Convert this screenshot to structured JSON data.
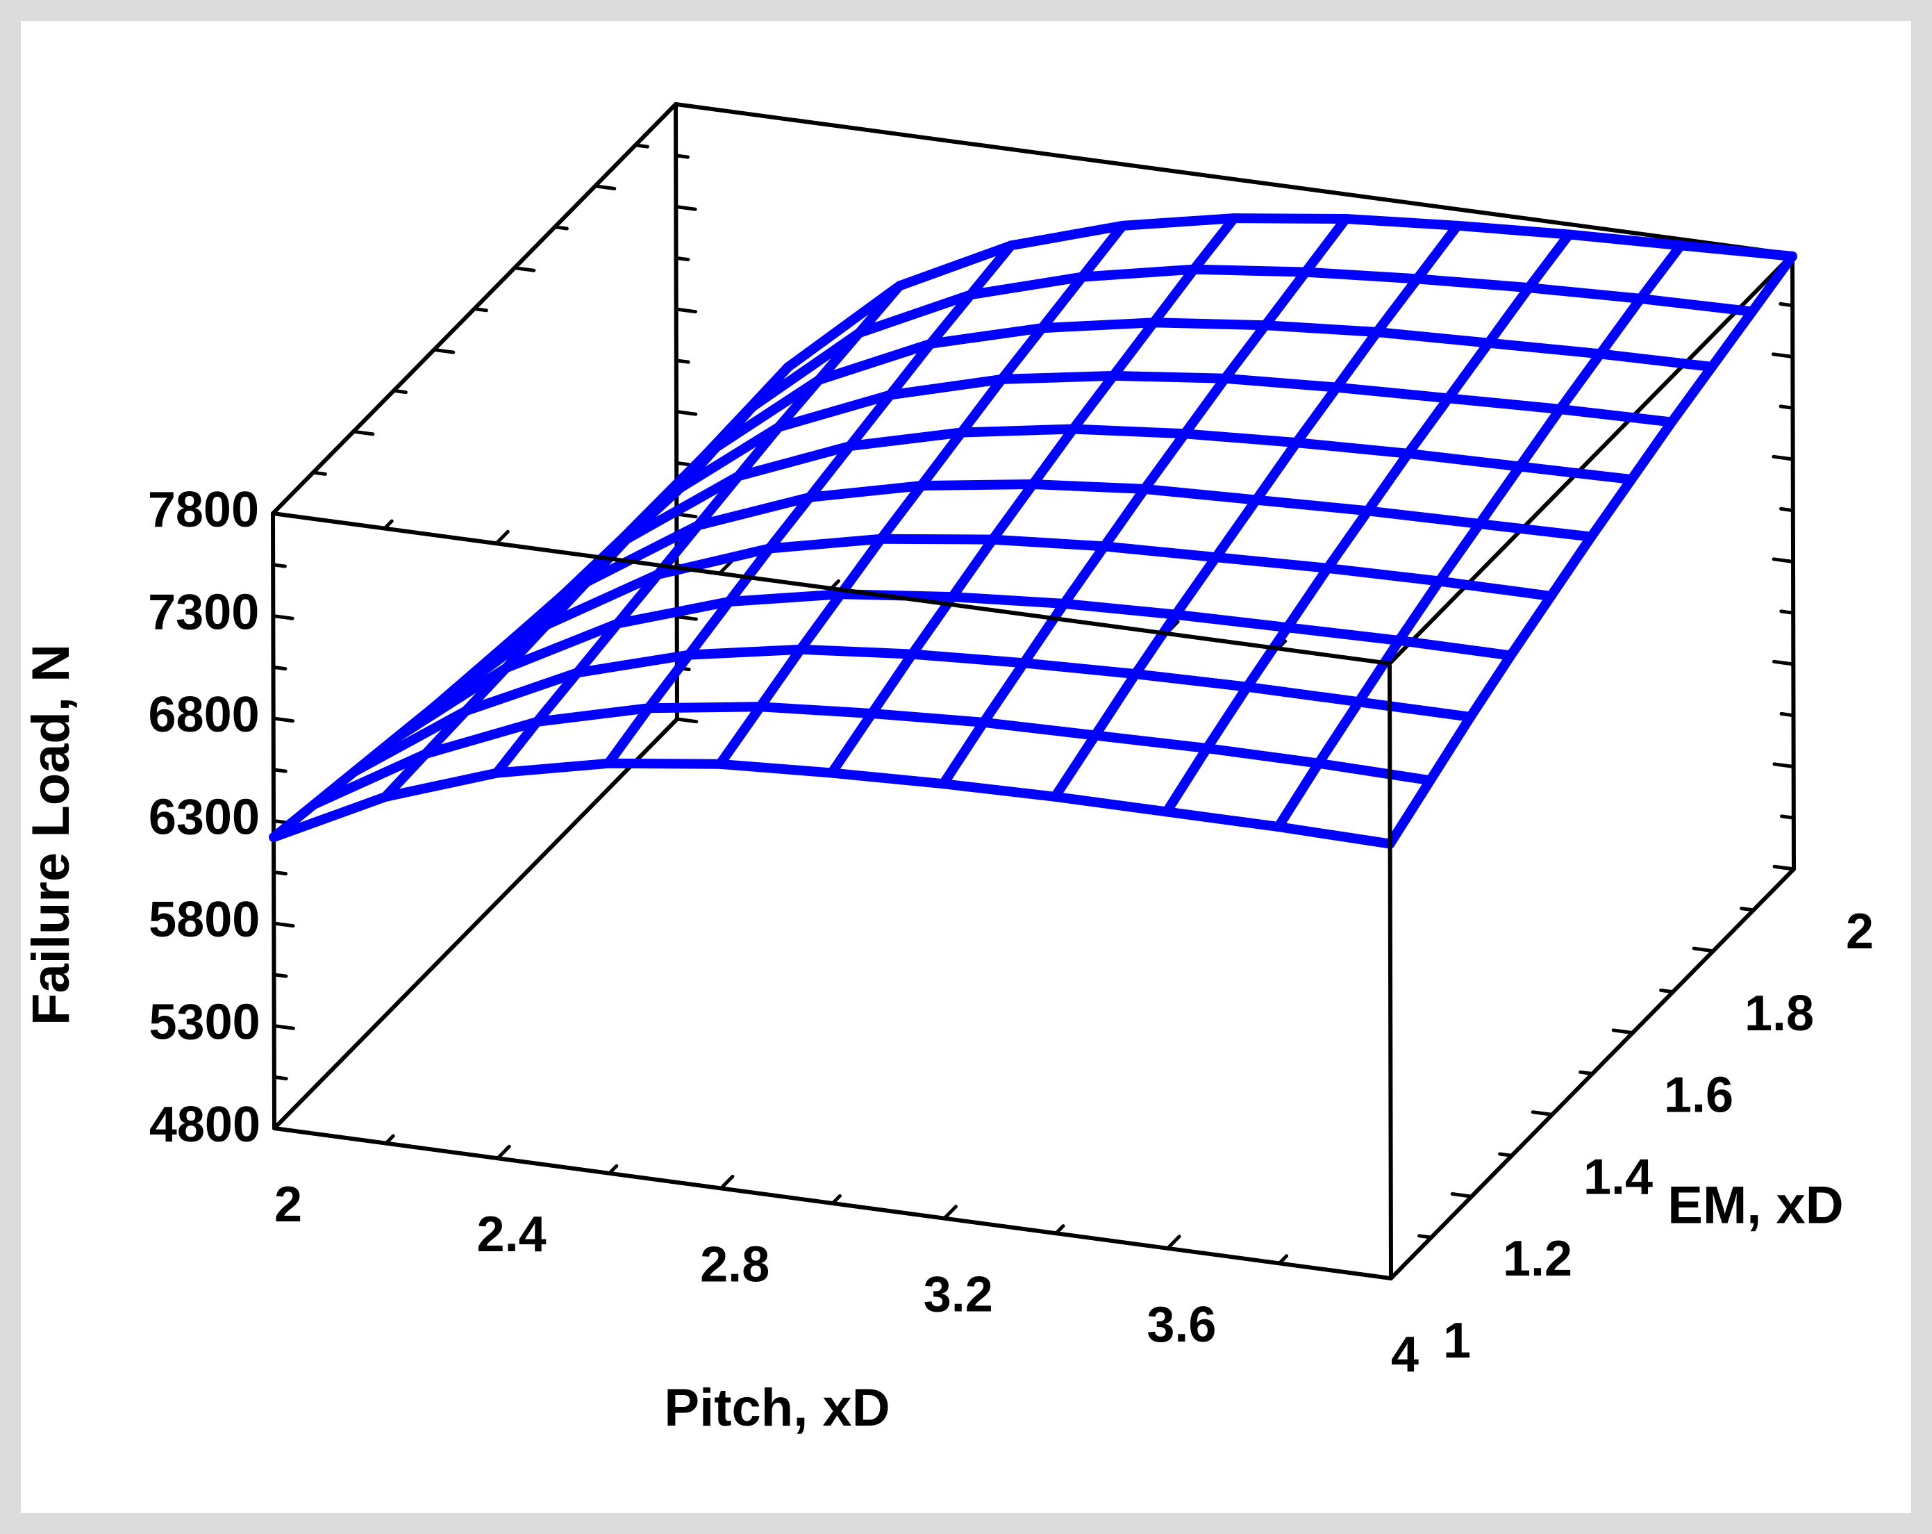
{
  "chart_data": {
    "type": "surface",
    "title": "",
    "xlabel": "Pitch, xD",
    "ylabel": "EM, xD",
    "zlabel": "Failure Load, N",
    "xlim": [
      2,
      4
    ],
    "ylim": [
      1,
      2
    ],
    "zlim": [
      4800,
      7800
    ],
    "x_ticks": [
      2,
      2.4,
      2.8,
      3.2,
      3.6,
      4
    ],
    "x_tick_labels": [
      "2",
      "2.4",
      "2.8",
      "3.2",
      "3.6",
      "4"
    ],
    "y_ticks": [
      1,
      1.2,
      1.4,
      1.6,
      1.8,
      2
    ],
    "y_tick_labels": [
      "1",
      "1.2",
      "1.4",
      "1.6",
      "1.8",
      "2"
    ],
    "z_ticks": [
      4800,
      5300,
      5800,
      6300,
      6800,
      7300,
      7800
    ],
    "z_tick_labels": [
      "4800",
      "5300",
      "5800",
      "6300",
      "6800",
      "7300",
      "7800"
    ],
    "grid_x": [
      2,
      2.2,
      2.4,
      2.6,
      2.8,
      3.0,
      3.2,
      3.4,
      3.6,
      3.8,
      4.0
    ],
    "grid_y": [
      1,
      1.1,
      1.2,
      1.3,
      1.4,
      1.5,
      1.6,
      1.7,
      1.8,
      1.9,
      2.0
    ],
    "z_values": [
      [
        6220,
        6180,
        6140,
        6100,
        6060,
        6030,
        6000,
        5970,
        5950,
        5930,
        5910
      ],
      [
        6490,
        6500,
        6510,
        6520,
        6530,
        6540,
        6550,
        6560,
        6570,
        6580,
        6590
      ],
      [
        6680,
        6730,
        6770,
        6810,
        6850,
        6890,
        6930,
        6970,
        7000,
        7030,
        7060
      ],
      [
        6800,
        6870,
        6930,
        6990,
        7050,
        7100,
        7150,
        7200,
        7250,
        7290,
        7330
      ],
      [
        6870,
        6950,
        7030,
        7100,
        7170,
        7230,
        7290,
        7350,
        7400,
        7450,
        7500
      ],
      [
        6900,
        6990,
        7080,
        7160,
        7240,
        7310,
        7380,
        7440,
        7500,
        7560,
        7610
      ],
      [
        6920,
        7020,
        7110,
        7200,
        7280,
        7360,
        7430,
        7500,
        7560,
        7620,
        7680
      ],
      [
        6930,
        7030,
        7130,
        7220,
        7300,
        7380,
        7460,
        7530,
        7600,
        7660,
        7720
      ],
      [
        6930,
        7040,
        7140,
        7230,
        7320,
        7400,
        7480,
        7550,
        7620,
        7690,
        7750
      ],
      [
        6930,
        7040,
        7140,
        7240,
        7330,
        7410,
        7490,
        7570,
        7640,
        7710,
        7770
      ],
      [
        6920,
        7030,
        7140,
        7240,
        7330,
        7420,
        7500,
        7580,
        7650,
        7720,
        7790
      ]
    ],
    "mesh_color": "#0000ff",
    "box_color": "#000000",
    "background": "#dcdcdc"
  }
}
